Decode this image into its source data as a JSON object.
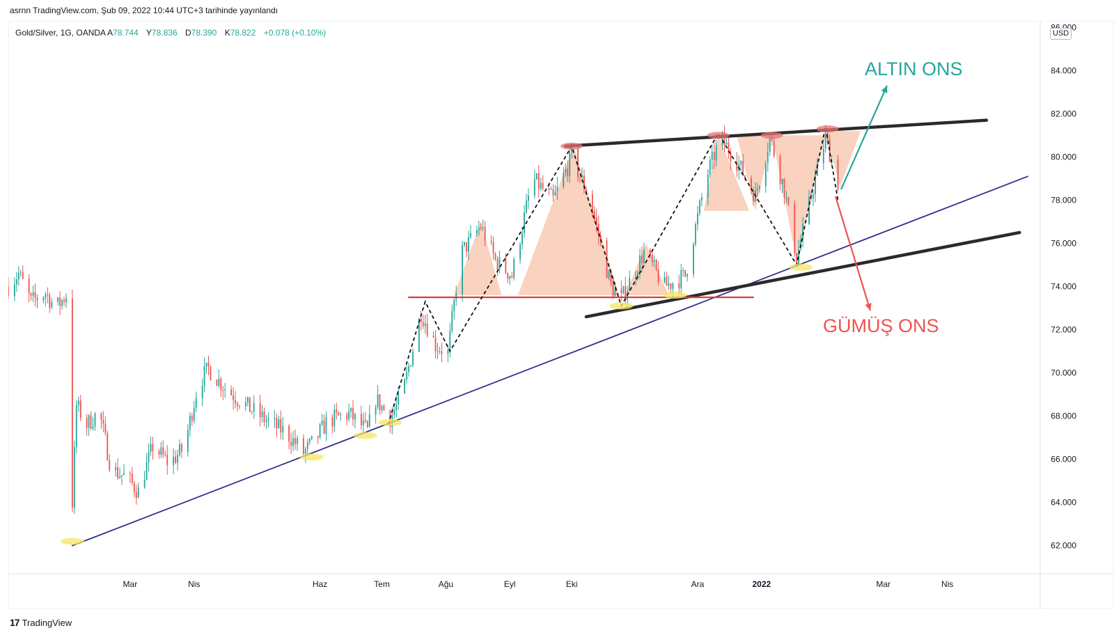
{
  "publish_line": "asrnn TradingView.com, Şub 09, 2022 10:44 UTC+3 tarihinde yayınlandı",
  "legend": {
    "symbol": "Gold/Silver, 1G, OANDA",
    "open_label": "A",
    "open": "78.744",
    "high_label": "Y",
    "high": "78.836",
    "low_label": "D",
    "low": "78.390",
    "close_label": "K",
    "close": "78.822",
    "change": "+0.078 (+0.10%)"
  },
  "currency": "USD",
  "footer": {
    "brand_logo": "17",
    "brand": "TradingView"
  },
  "annotations": {
    "gold": {
      "text": "ALTIN ONS",
      "color": "#26a69a"
    },
    "silver": {
      "text": "GÜMÜŞ ONS",
      "color": "#ef5350"
    }
  },
  "colors": {
    "up": "#26a69a",
    "down": "#ef5350",
    "trend": "#2e2e8c",
    "channel": "#2a2a2a",
    "support": "#e53935",
    "pattern_fill": "#f4a582",
    "touch_yellow": "#f5e663",
    "touch_red": "#e57373"
  },
  "chart_data": {
    "type": "candlestick",
    "title": "Gold/Silver, 1G, OANDA",
    "y_axis": {
      "ylim": [
        60.7,
        86.3
      ],
      "ticks": [
        62,
        64,
        66,
        68,
        70,
        72,
        74,
        76,
        78,
        80,
        82,
        84,
        86
      ],
      "tick_labels": [
        "62.000",
        "64.000",
        "66.000",
        "68.000",
        "70.000",
        "72.000",
        "74.000",
        "76.000",
        "78.000",
        "80.000",
        "82.000",
        "84.000",
        "86.000"
      ],
      "unit": "USD"
    },
    "x_axis": {
      "tick_labels": [
        "Mar",
        "Nis",
        "Haz",
        "Tem",
        "Ağu",
        "Eyl",
        "Eki",
        "Ara",
        "2022",
        "Mar",
        "Nis"
      ],
      "tick_dates": [
        "2021-03-01",
        "2021-04-01",
        "2021-06-01",
        "2021-07-01",
        "2021-08-01",
        "2021-09-01",
        "2021-10-01",
        "2021-12-01",
        "2022-01-01",
        "2022-03-01",
        "2022-04-01"
      ],
      "range": [
        "2021-01-01",
        "2022-05-16"
      ]
    },
    "key_prices": [
      {
        "date": "2021-01-01",
        "price": 74.0
      },
      {
        "date": "2021-01-06",
        "price": 74.6
      },
      {
        "date": "2021-01-12",
        "price": 73.3
      },
      {
        "date": "2021-01-19",
        "price": 73.7
      },
      {
        "date": "2021-01-24",
        "price": 73.0
      },
      {
        "date": "2021-01-29",
        "price": 73.6
      },
      {
        "date": "2021-02-01",
        "price": 64.0
      },
      {
        "date": "2021-02-03",
        "price": 68.5
      },
      {
        "date": "2021-02-08",
        "price": 67.6
      },
      {
        "date": "2021-02-14",
        "price": 68.2
      },
      {
        "date": "2021-02-20",
        "price": 65.5
      },
      {
        "date": "2021-02-27",
        "price": 65.2
      },
      {
        "date": "2021-03-05",
        "price": 64.5
      },
      {
        "date": "2021-03-12",
        "price": 66.6
      },
      {
        "date": "2021-03-20",
        "price": 65.8
      },
      {
        "date": "2021-03-27",
        "price": 66.5
      },
      {
        "date": "2021-04-03",
        "price": 69.5
      },
      {
        "date": "2021-04-08",
        "price": 70.2
      },
      {
        "date": "2021-04-16",
        "price": 69.3
      },
      {
        "date": "2021-04-26",
        "price": 68.5
      },
      {
        "date": "2021-05-06",
        "price": 67.8
      },
      {
        "date": "2021-05-16",
        "price": 67.2
      },
      {
        "date": "2021-05-24",
        "price": 66.3
      },
      {
        "date": "2021-05-28",
        "price": 66.7
      },
      {
        "date": "2021-06-05",
        "price": 67.8
      },
      {
        "date": "2021-06-15",
        "price": 68.1
      },
      {
        "date": "2021-06-24",
        "price": 67.3
      },
      {
        "date": "2021-06-28",
        "price": 68.8
      },
      {
        "date": "2021-07-05",
        "price": 67.9
      },
      {
        "date": "2021-07-11",
        "price": 69.0
      },
      {
        "date": "2021-07-20",
        "price": 72.8
      },
      {
        "date": "2021-07-27",
        "price": 71.3
      },
      {
        "date": "2021-08-02",
        "price": 70.9
      },
      {
        "date": "2021-08-08",
        "price": 75.5
      },
      {
        "date": "2021-08-18",
        "price": 76.8
      },
      {
        "date": "2021-08-25",
        "price": 75.2
      },
      {
        "date": "2021-09-02",
        "price": 74.5
      },
      {
        "date": "2021-09-12",
        "price": 79.0
      },
      {
        "date": "2021-09-22",
        "price": 78.0
      },
      {
        "date": "2021-10-01",
        "price": 80.0
      },
      {
        "date": "2021-10-10",
        "price": 78.0
      },
      {
        "date": "2021-10-20",
        "price": 74.0
      },
      {
        "date": "2021-10-25",
        "price": 73.4
      },
      {
        "date": "2021-11-05",
        "price": 75.6
      },
      {
        "date": "2021-11-15",
        "price": 74.0
      },
      {
        "date": "2021-11-25",
        "price": 74.5
      },
      {
        "date": "2021-12-05",
        "price": 79.0
      },
      {
        "date": "2021-12-12",
        "price": 80.9
      },
      {
        "date": "2021-12-20",
        "price": 79.8
      },
      {
        "date": "2021-12-29",
        "price": 78.2
      },
      {
        "date": "2022-01-05",
        "price": 80.9
      },
      {
        "date": "2022-01-12",
        "price": 78.5
      },
      {
        "date": "2022-01-18",
        "price": 75.3
      },
      {
        "date": "2022-01-27",
        "price": 79.0
      },
      {
        "date": "2022-02-01",
        "price": 80.9
      },
      {
        "date": "2022-02-07",
        "price": 78.8
      }
    ],
    "lines": [
      {
        "kind": "trendline",
        "color": "#2e2e8c",
        "from": {
          "date": "2021-02-01",
          "price": 62.0
        },
        "to": {
          "date": "2022-05-10",
          "price": 79.1
        }
      },
      {
        "kind": "channel_top",
        "color": "#2a2a2a",
        "from": {
          "date": "2021-09-28",
          "price": 80.5
        },
        "to": {
          "date": "2022-04-20",
          "price": 81.7
        }
      },
      {
        "kind": "channel_bottom",
        "color": "#2a2a2a",
        "from": {
          "date": "2021-10-08",
          "price": 72.6
        },
        "to": {
          "date": "2022-05-06",
          "price": 76.5
        }
      },
      {
        "kind": "support",
        "color": "#e53935",
        "from": {
          "date": "2021-07-14",
          "price": 73.5
        },
        "to": {
          "date": "2021-12-28",
          "price": 73.5
        }
      }
    ]
  }
}
